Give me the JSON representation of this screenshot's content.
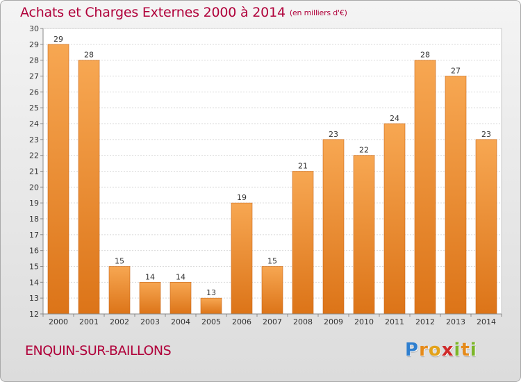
{
  "title": "Achats et Charges Externes 2000 à 2014",
  "subtitle": "(en milliers d'€)",
  "commune": "ENQUIN-SUR-BAILLONS",
  "logo": {
    "letters": [
      "P",
      "r",
      "o",
      "x",
      "i",
      "t",
      "i"
    ],
    "colors": [
      "#2f7fcf",
      "#e58a1a",
      "#e3a21a",
      "#d02a2a",
      "#7cb529",
      "#e58a1a",
      "#7cb529"
    ]
  },
  "chart_data": {
    "type": "bar",
    "categories": [
      "2000",
      "2001",
      "2002",
      "2003",
      "2004",
      "2005",
      "2006",
      "2007",
      "2008",
      "2009",
      "2010",
      "2011",
      "2012",
      "2013",
      "2014"
    ],
    "values": [
      29,
      28,
      15,
      14,
      14,
      13,
      19,
      15,
      21,
      23,
      22,
      24,
      28,
      27,
      23
    ],
    "ylim": [
      12,
      30
    ],
    "yticks": [
      12,
      13,
      14,
      15,
      16,
      17,
      18,
      19,
      20,
      21,
      22,
      23,
      24,
      25,
      26,
      27,
      28,
      29,
      30
    ],
    "grid": true,
    "bar_color": "#f08a2c"
  }
}
